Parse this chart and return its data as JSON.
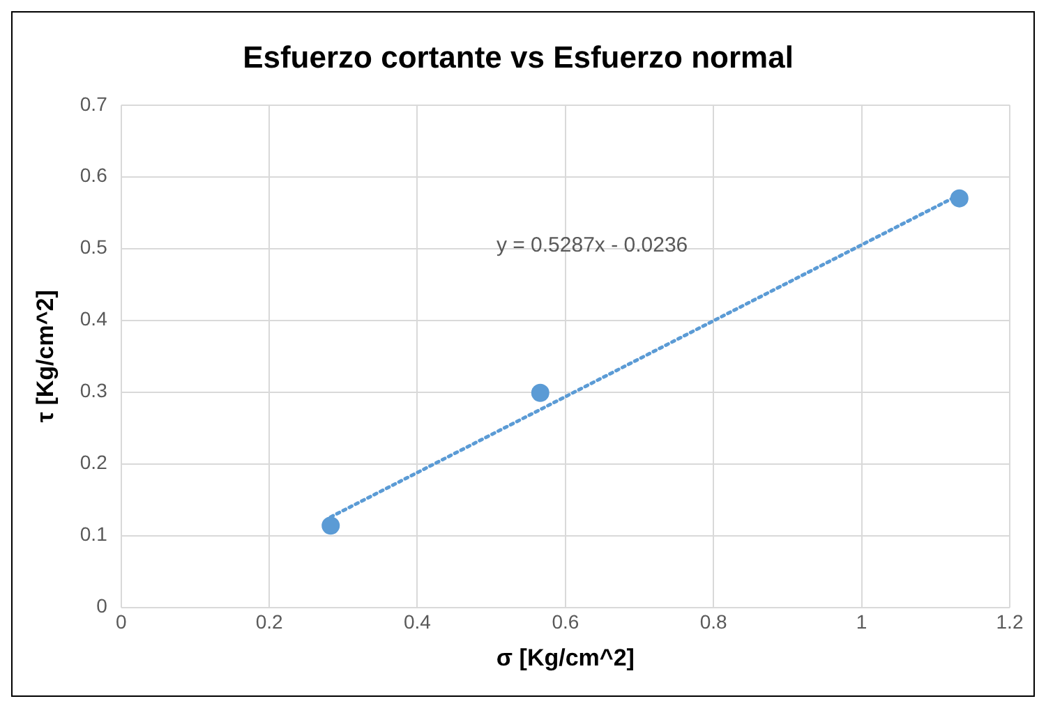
{
  "chart_data": {
    "type": "scatter",
    "title": "Esfuerzo cortante vs Esfuerzo normal",
    "xlabel": "σ [Kg/cm^2]",
    "ylabel": "τ [Kg/cm^2]",
    "x": [
      0.283,
      0.566,
      1.132
    ],
    "series": [
      {
        "type": "scatter",
        "color": "#5b9bd5",
        "values": [
          0.114,
          0.299,
          0.57
        ],
        "marker": "circle"
      },
      {
        "type": "line",
        "color": "#5b9bd5",
        "x": [
          0.283,
          1.132
        ],
        "values": [
          0.126,
          0.575
        ],
        "line_style": "dotted",
        "marker": "none"
      }
    ],
    "annotations": [
      "y = 0.5287x - 0.0236"
    ],
    "xlim": [
      0,
      1.2
    ],
    "xticks": [
      0,
      0.2,
      0.4,
      0.6,
      0.8,
      1,
      1.2
    ],
    "ylim": [
      0,
      0.7
    ],
    "yticks": [
      0,
      0.1,
      0.2,
      0.3,
      0.4,
      0.5,
      0.6,
      0.7
    ],
    "grid": true,
    "legend": false
  }
}
